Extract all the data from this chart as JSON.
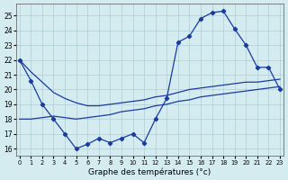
{
  "xlabel": "Graphe des températures (°c)",
  "background_color": "#d4ecf0",
  "grid_color": "#aecdd4",
  "line_color": "#1a3a9e",
  "yticks": [
    16,
    17,
    18,
    19,
    20,
    21,
    22,
    23,
    24,
    25
  ],
  "xticks": [
    0,
    1,
    2,
    3,
    4,
    5,
    6,
    7,
    8,
    9,
    10,
    11,
    12,
    13,
    14,
    15,
    16,
    17,
    18,
    19,
    20,
    21,
    22,
    23
  ],
  "s1_x": [
    0,
    1,
    2,
    3,
    4,
    5,
    6,
    7,
    8,
    9,
    10,
    11,
    12,
    13,
    14,
    15,
    16,
    17,
    18,
    19,
    20,
    21,
    22,
    23
  ],
  "s1_y": [
    22.0,
    20.6,
    19.0,
    18.0,
    17.0,
    16.0,
    16.3,
    16.7,
    16.4,
    16.7,
    17.0,
    16.4,
    18.0,
    19.4,
    23.2,
    23.6,
    24.8,
    25.2,
    25.3,
    24.1,
    23.0,
    21.5,
    21.5,
    20.0
  ],
  "s2_x": [
    0,
    1,
    2,
    3,
    4,
    5,
    6,
    7,
    8,
    9,
    10,
    11,
    12,
    13,
    14,
    15,
    16,
    17,
    18,
    19,
    20,
    21,
    22,
    23
  ],
  "s2_y": [
    22.0,
    21.2,
    20.5,
    19.8,
    19.4,
    19.1,
    18.9,
    18.9,
    19.0,
    19.1,
    19.2,
    19.3,
    19.5,
    19.6,
    19.8,
    20.0,
    20.1,
    20.2,
    20.3,
    20.4,
    20.5,
    20.5,
    20.6,
    20.7
  ],
  "s3_x": [
    0,
    1,
    2,
    3,
    4,
    5,
    6,
    7,
    8,
    9,
    10,
    11,
    12,
    13,
    14,
    15,
    16,
    17,
    18,
    19,
    20,
    21,
    22,
    23
  ],
  "s3_y": [
    18.0,
    18.0,
    18.1,
    18.2,
    18.1,
    18.0,
    18.1,
    18.2,
    18.3,
    18.5,
    18.6,
    18.7,
    18.9,
    19.0,
    19.2,
    19.3,
    19.5,
    19.6,
    19.7,
    19.8,
    19.9,
    20.0,
    20.1,
    20.2
  ]
}
